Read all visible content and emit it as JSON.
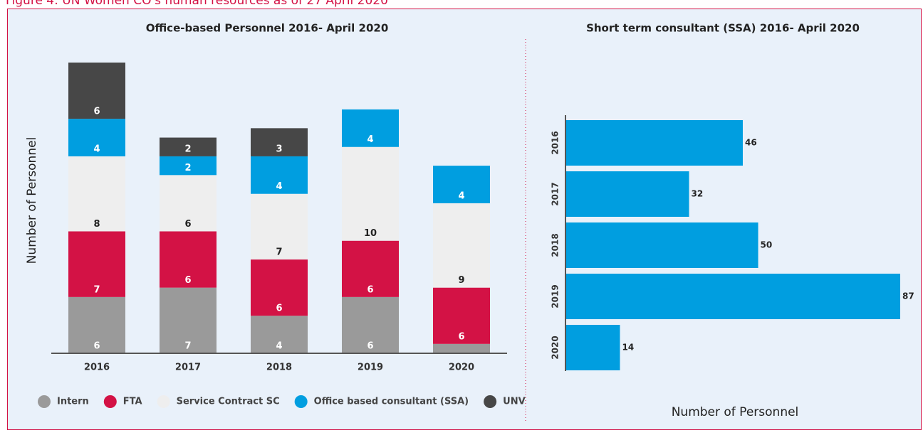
{
  "figure_title": "Figure 4: UN Women CO's human resources as of 27 April 2020",
  "chart_data": [
    {
      "type": "stacked-bar",
      "title": "Office-based Personnel 2016- April 2020",
      "ylabel": "Number of Personnel",
      "categories": [
        "2016",
        "2017",
        "2018",
        "2019",
        "2020"
      ],
      "ylim": [
        0,
        31
      ],
      "series": [
        {
          "name": "Intern",
          "color": "#9a9a9a",
          "values": [
            6,
            7,
            4,
            6,
            1
          ],
          "value_labels": [
            "6",
            "7",
            "4",
            "6",
            null
          ]
        },
        {
          "name": "FTA",
          "color": "#d31245",
          "values": [
            7,
            6,
            6,
            6,
            6
          ]
        },
        {
          "name": "Service Contract SC",
          "color": "#eeeeee",
          "values": [
            8,
            6,
            7,
            10,
            9
          ]
        },
        {
          "name": "Office based consultant (SSA)",
          "color": "#009ee0",
          "values": [
            4,
            2,
            4,
            4,
            4
          ]
        },
        {
          "name": "UNV",
          "color": "#474747",
          "values": [
            6,
            2,
            3,
            null,
            null
          ]
        }
      ]
    },
    {
      "type": "hbar",
      "title": "Short term consultant (SSA)  2016- April 2020",
      "xlabel": "Number of Personnel",
      "categories": [
        "2016",
        "2017",
        "2018",
        "2019",
        "2020"
      ],
      "values": [
        46,
        32,
        50,
        87,
        14
      ],
      "color": "#009ee0",
      "xlim": [
        0,
        87
      ]
    }
  ]
}
